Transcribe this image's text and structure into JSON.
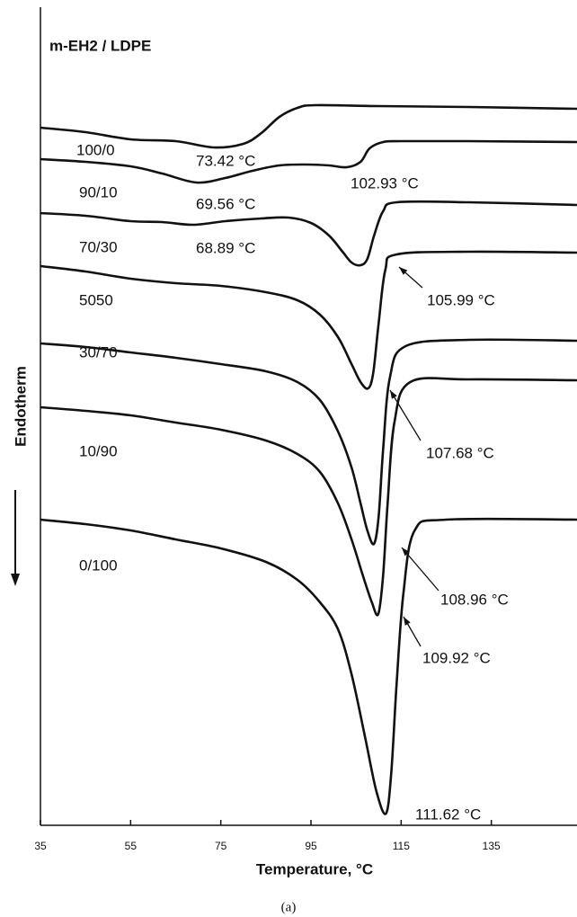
{
  "chart_data": {
    "type": "line",
    "title": "m-EH2 / LDPE",
    "xlabel": "Temperature, °C",
    "ylabel": "Endotherm",
    "caption": "(a)",
    "xlim": [
      35,
      154
    ],
    "xticks": [
      35,
      55,
      75,
      95,
      115,
      135
    ],
    "ylim": [
      910,
      0
    ],
    "color": "#111111",
    "grid": false,
    "series": [
      {
        "name": "100/0",
        "x": [
          35,
          45,
          55,
          65,
          73.42,
          80,
          84,
          88,
          92,
          96,
          110,
          130,
          154
        ],
        "values": [
          134,
          139,
          147,
          149,
          156,
          152,
          140,
          122,
          112,
          109,
          110,
          111,
          113
        ]
      },
      {
        "name": "90/10",
        "x": [
          35,
          45,
          55,
          62,
          69.56,
          76,
          82,
          88,
          94,
          99,
          102.93,
          106,
          108,
          111,
          115,
          130,
          154
        ],
        "values": [
          169,
          172,
          177,
          185,
          195,
          190,
          182,
          176,
          175,
          176,
          178,
          172,
          157,
          150,
          149,
          149,
          150
        ]
      },
      {
        "name": "70/30",
        "x": [
          35,
          45,
          55,
          62,
          68.89,
          76,
          84,
          90,
          95,
          99,
          102,
          104,
          105.99,
          107.5,
          109,
          111,
          114,
          130,
          154
        ],
        "values": [
          229,
          232,
          238,
          239,
          242,
          238,
          235,
          234,
          240,
          254,
          272,
          284,
          287,
          280,
          254,
          227,
          217,
          217,
          220
        ]
      },
      {
        "name": "5050",
        "x": [
          35,
          45,
          55,
          65,
          75,
          85,
          92,
          97,
          101,
          104,
          106,
          107.68,
          108.8,
          110,
          111.5,
          114,
          130,
          154
        ],
        "values": [
          288,
          294,
          302,
          307,
          310,
          317,
          326,
          342,
          367,
          397,
          417,
          424,
          407,
          352,
          292,
          275,
          272,
          273
        ]
      },
      {
        "name": "30/70",
        "x": [
          35,
          45,
          55,
          65,
          75,
          85,
          92,
          97,
          101,
          104,
          106,
          107.5,
          108.96,
          110,
          111,
          112.5,
          116,
          130,
          154
        ],
        "values": [
          374,
          378,
          384,
          390,
          397,
          405,
          417,
          437,
          472,
          512,
          552,
          582,
          597,
          567,
          492,
          412,
          377,
          370,
          371
        ]
      },
      {
        "name": "10/90",
        "x": [
          35,
          45,
          55,
          65,
          75,
          85,
          92,
          97,
          101,
          104,
          106.5,
          108.5,
          109.92,
          111,
          112,
          113.5,
          117,
          130,
          154
        ],
        "values": [
          445,
          449,
          454,
          462,
          470,
          482,
          497,
          517,
          552,
          592,
          632,
          662,
          675,
          632,
          552,
          462,
          417,
          414,
          415
        ]
      },
      {
        "name": "0/100",
        "x": [
          35,
          45,
          55,
          65,
          75,
          85,
          92,
          97,
          101,
          104,
          107,
          109.5,
          111.62,
          112.8,
          114,
          115.5,
          118,
          125,
          154
        ],
        "values": [
          570,
          575,
          582,
          592,
          602,
          617,
          637,
          662,
          692,
          742,
          812,
          872,
          897,
          852,
          752,
          652,
          582,
          570,
          570
        ]
      }
    ],
    "annotations": [
      "73.42 °C",
      "102.93 °C",
      "69.56 °C",
      "68.89 °C",
      "105.99 °C",
      "107.68 °C",
      "108.96 °C",
      "109.92 °C",
      "111.62 °C"
    ]
  }
}
